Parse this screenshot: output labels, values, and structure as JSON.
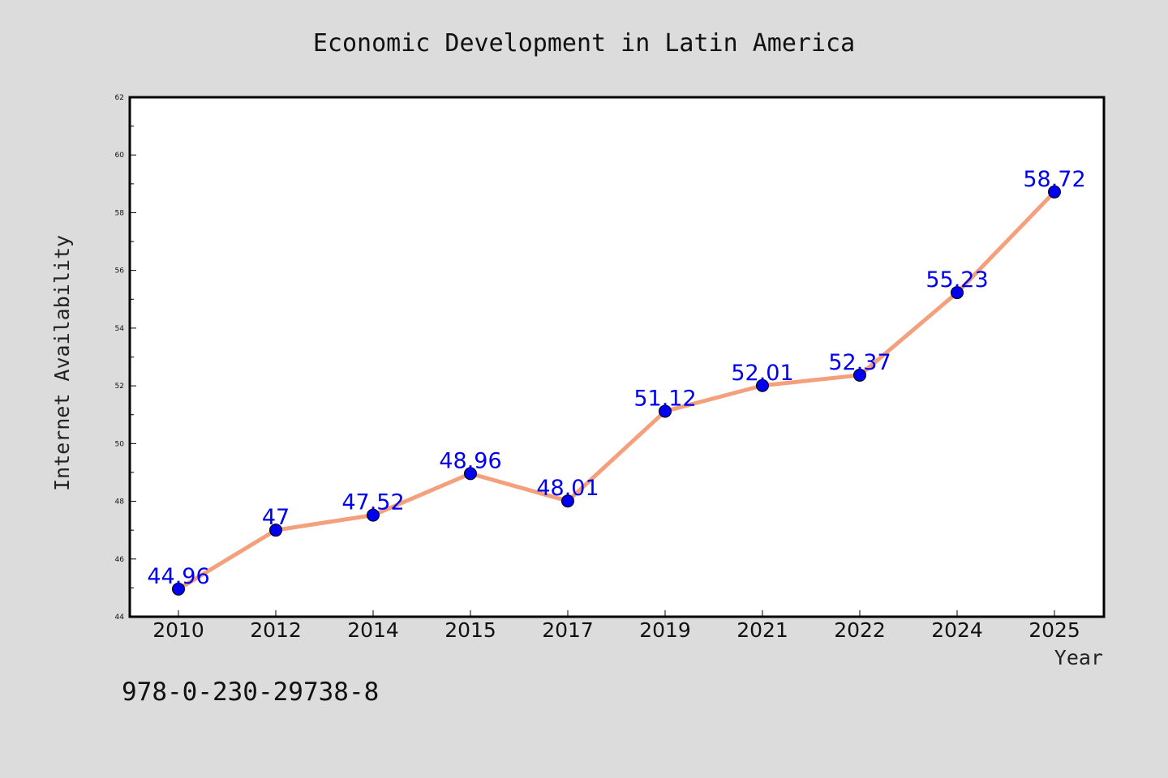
{
  "colors": {
    "background": "#dcdcdc",
    "plot_background": "#ffffff",
    "line": "#f4a07c",
    "marker": "#0000ee",
    "data_label": "#0000ee"
  },
  "footer": {
    "isbn": "978-0-230-29738-8"
  },
  "chart_data": {
    "type": "line",
    "title": "Economic Development in Latin America",
    "xlabel": "Year",
    "ylabel": "Internet Availability",
    "categories": [
      "2010",
      "2012",
      "2014",
      "2015",
      "2017",
      "2019",
      "2021",
      "2022",
      "2024",
      "2025"
    ],
    "series": [
      {
        "values": [
          44.96,
          47,
          47.52,
          48.96,
          48.01,
          51.12,
          52.01,
          52.37,
          55.23,
          58.72
        ],
        "labels": [
          "44.96",
          "47",
          "47.52",
          "48.96",
          "48.01",
          "51.12",
          "52.01",
          "52.37",
          "55.23",
          "58.72"
        ]
      }
    ],
    "ylim": [
      44,
      62
    ],
    "yticks": [
      44,
      46,
      48,
      50,
      52,
      54,
      56,
      58,
      60,
      62
    ],
    "ytick_labels": [
      "44",
      "46",
      "48",
      "50",
      "52",
      "54",
      "56",
      "58",
      "60",
      "62"
    ],
    "grid": false,
    "legend": "none"
  }
}
